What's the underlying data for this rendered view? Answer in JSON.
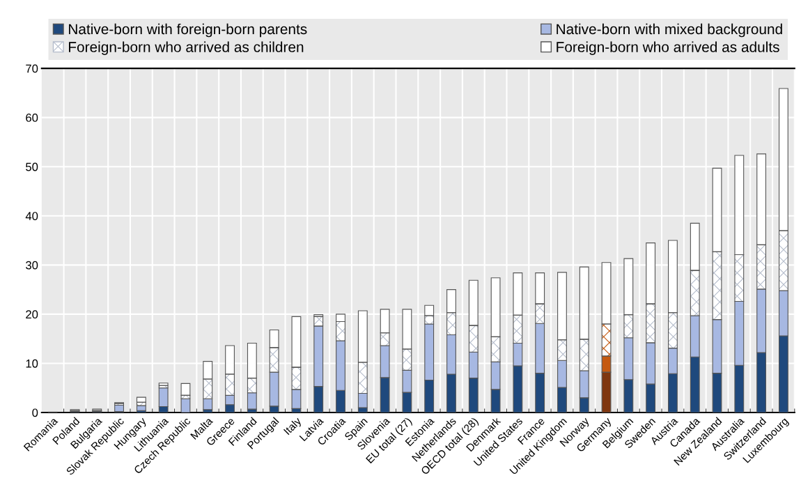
{
  "chart_data": {
    "type": "bar",
    "stacked": true,
    "categories": [
      "Romania",
      "Poland",
      "Bulgaria",
      "Slovak Republic",
      "Hungary",
      "Lithuania",
      "Czech Republic",
      "Malta",
      "Greece",
      "Finland",
      "Portugal",
      "Italy",
      "Latvia",
      "Croatia",
      "Spain",
      "Slovenia",
      "EU total (27)",
      "Estonia",
      "Netherlands",
      "OECD total (28)",
      "Denmark",
      "United States",
      "France",
      "United Kingdom",
      "Norway",
      "Germany",
      "Belgium",
      "Sweden",
      "Austria",
      "Canada",
      "New Zealand",
      "Australia",
      "Switzerland",
      "Luxembourg"
    ],
    "series": [
      {
        "name": "Native-born with foreign-born parents",
        "color": "#1f497d",
        "colors": [
          "#1f497d",
          "#1f497d",
          "#1f497d",
          "#1f497d",
          "#1f497d",
          "#1f497d",
          "#1f497d",
          "#1f497d",
          "#1f497d",
          "#1f497d",
          "#1f497d",
          "#1f497d",
          "#1f497d",
          "#1f497d",
          "#1f497d",
          "#1f497d",
          "#1f497d",
          "#1f497d",
          "#1f497d",
          "#1f497d",
          "#1f497d",
          "#1f497d",
          "#1f497d",
          "#1f497d",
          "#1f497d",
          "#7f3710",
          "#1f497d",
          "#1f497d",
          "#1f497d",
          "#1f497d",
          "#1f497d",
          "#1f497d",
          "#1f497d",
          "#1f497d"
        ],
        "values": [
          null,
          0.2,
          0.2,
          0.2,
          0.4,
          1.2,
          null,
          0.6,
          1.6,
          0.7,
          1.3,
          0.8,
          5.3,
          4.5,
          1.0,
          7.1,
          4.1,
          6.6,
          7.8,
          7.0,
          4.7,
          9.5,
          8.0,
          5.1,
          3.0,
          8.2,
          6.7,
          5.8,
          7.9,
          11.3,
          8.0,
          9.6,
          12.2,
          15.6
        ]
      },
      {
        "name": "Native-born with mixed background",
        "color": "#a7b8e2",
        "colors": [
          "#a7b8e2",
          "#a7b8e2",
          "#a7b8e2",
          "#a7b8e2",
          "#a7b8e2",
          "#a7b8e2",
          "#a7b8e2",
          "#a7b8e2",
          "#a7b8e2",
          "#a7b8e2",
          "#a7b8e2",
          "#a7b8e2",
          "#a7b8e2",
          "#a7b8e2",
          "#a7b8e2",
          "#a7b8e2",
          "#a7b8e2",
          "#a7b8e2",
          "#a7b8e2",
          "#a7b8e2",
          "#a7b8e2",
          "#a7b8e2",
          "#a7b8e2",
          "#a7b8e2",
          "#a7b8e2",
          "#c55a11",
          "#a7b8e2",
          "#a7b8e2",
          "#a7b8e2",
          "#a7b8e2",
          "#a7b8e2",
          "#a7b8e2",
          "#a7b8e2",
          "#a7b8e2"
        ],
        "values": [
          0.0,
          null,
          0.1,
          1.3,
          1.0,
          3.8,
          2.8,
          2.2,
          1.9,
          3.3,
          6.9,
          3.9,
          12.3,
          10.1,
          2.9,
          6.5,
          4.5,
          11.4,
          8.0,
          5.3,
          5.6,
          4.6,
          10.1,
          5.5,
          5.5,
          3.3,
          8.5,
          8.4,
          5.2,
          8.4,
          10.9,
          13.0,
          12.9,
          9.2
        ]
      },
      {
        "name": "Foreign-born who arrived as children",
        "color": "#b4bccb",
        "colors": [
          "#b4bccb",
          "#b4bccb",
          "#b4bccb",
          "#b4bccb",
          "#b4bccb",
          "#b4bccb",
          "#b4bccb",
          "#b4bccb",
          "#b4bccb",
          "#b4bccb",
          "#b4bccb",
          "#b4bccb",
          "#b4bccb",
          "#b4bccb",
          "#b4bccb",
          "#b4bccb",
          "#b4bccb",
          "#b4bccb",
          "#b4bccb",
          "#b4bccb",
          "#b4bccb",
          "#b4bccb",
          "#b4bccb",
          "#b4bccb",
          "#b4bccb",
          "#c55a11",
          "#b4bccb",
          "#b4bccb",
          "#b4bccb",
          "#b4bccb",
          "#b4bccb",
          "#b4bccb",
          "#b4bccb",
          "#b4bccb"
        ],
        "values": [
          0.0,
          0.2,
          0.1,
          0.3,
          0.7,
          0.5,
          0.7,
          4.0,
          4.3,
          3.0,
          5.0,
          4.5,
          1.9,
          3.9,
          6.3,
          2.6,
          4.3,
          1.7,
          4.5,
          5.4,
          5.1,
          5.7,
          4.0,
          4.2,
          6.4,
          6.5,
          4.7,
          7.9,
          7.2,
          9.2,
          13.8,
          9.5,
          9.0,
          12.2
        ]
      },
      {
        "name": "Foreign-born who arrived as adults",
        "color": "#ffffff",
        "colors": [
          "#ffffff",
          "#ffffff",
          "#ffffff",
          "#ffffff",
          "#ffffff",
          "#ffffff",
          "#ffffff",
          "#ffffff",
          "#ffffff",
          "#ffffff",
          "#ffffff",
          "#ffffff",
          "#ffffff",
          "#ffffff",
          "#ffffff",
          "#ffffff",
          "#ffffff",
          "#ffffff",
          "#ffffff",
          "#ffffff",
          "#ffffff",
          "#ffffff",
          "#ffffff",
          "#ffffff",
          "#ffffff",
          "#ffffff",
          "#ffffff",
          "#ffffff",
          "#ffffff",
          "#ffffff",
          "#ffffff",
          "#ffffff",
          "#ffffff",
          "#ffffff"
        ],
        "values": [
          0.1,
          0.2,
          0.3,
          0.2,
          1.0,
          0.5,
          2.4,
          3.6,
          5.8,
          7.1,
          3.6,
          10.3,
          0.4,
          1.5,
          10.5,
          4.8,
          8.1,
          2.1,
          4.7,
          9.2,
          12.0,
          8.6,
          6.3,
          13.7,
          14.7,
          12.5,
          11.4,
          12.4,
          14.7,
          9.6,
          17.0,
          20.2,
          18.5,
          28.9
        ]
      }
    ],
    "ylim": [
      0,
      70
    ],
    "yticks": [
      0,
      10,
      20,
      30,
      40,
      50,
      60,
      70
    ],
    "grid": "y",
    "legend": "top"
  }
}
